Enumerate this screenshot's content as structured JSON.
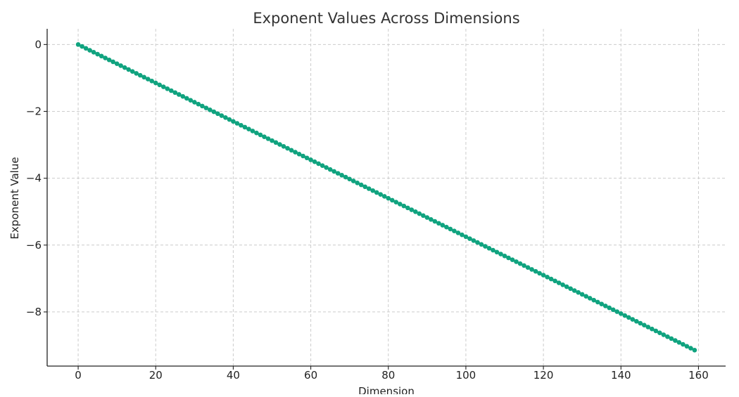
{
  "chart_data": {
    "type": "line",
    "title": "Exponent Values Across Dimensions",
    "xlabel": "Dimension",
    "ylabel": "Exponent Value",
    "x_start": 0,
    "x_end": 159,
    "x_step": 1,
    "y_start": 0,
    "y_end": -9.14,
    "y_per_x": -0.0575,
    "xlim": [
      -8,
      167
    ],
    "ylim": [
      -9.62,
      0.47
    ],
    "x_ticks": [
      0,
      20,
      40,
      60,
      80,
      100,
      120,
      140,
      160
    ],
    "x_tick_labels": [
      "0",
      "20",
      "40",
      "60",
      "80",
      "100",
      "120",
      "140",
      "160"
    ],
    "y_ticks": [
      0,
      -2,
      -4,
      -6,
      -8
    ],
    "y_tick_labels": [
      "0",
      "−2",
      "−4",
      "−6",
      "−8"
    ],
    "grid": true,
    "marker": "circle",
    "series_color": "#10a37f"
  }
}
